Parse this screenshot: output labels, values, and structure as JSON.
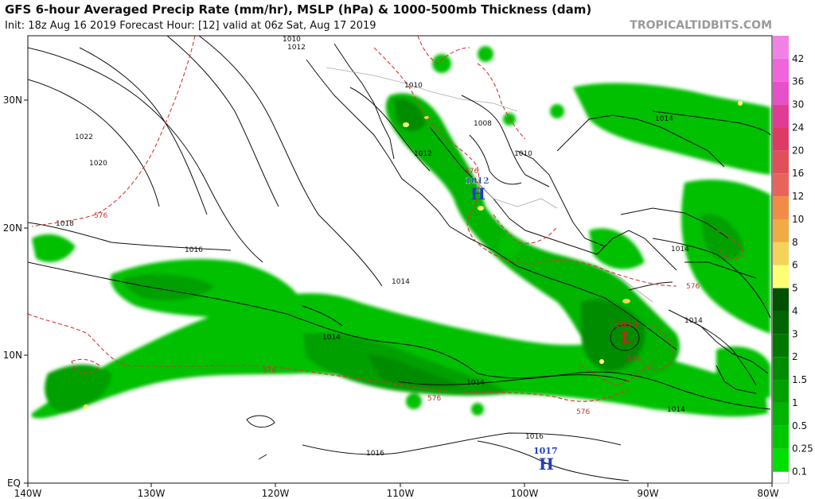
{
  "header": {
    "title": "GFS 6-hour Averaged Precip Rate (mm/hr), MSLP (hPa) & 1000-500mb Thickness (dam)",
    "subtitle": "Init: 18z Aug 16 2019   Forecast Hour: [12]   valid at 06z Sat, Aug 17 2019",
    "source": "TROPICALTIDBITS.COM"
  },
  "axes": {
    "lon_labels": [
      "140W",
      "130W",
      "120W",
      "110W",
      "100W",
      "90W",
      "80W"
    ],
    "lat_labels": [
      "30N",
      "20N",
      "10N",
      "EQ"
    ]
  },
  "colorbar": {
    "levels": [
      "0.1",
      "0.25",
      "0.5",
      "1",
      "1.5",
      "2",
      "3",
      "4",
      "5",
      "6",
      "8",
      "10",
      "12",
      "16",
      "20",
      "24",
      "30",
      "36",
      "42"
    ],
    "colors": [
      "#00e000",
      "#00c800",
      "#00b400",
      "#00a000",
      "#008c00",
      "#007800",
      "#006400",
      "#005000",
      "#ffff73",
      "#f5d25a",
      "#f0aa46",
      "#f08c46",
      "#e8645a",
      "#e0505a",
      "#dc3c64",
      "#e03c96",
      "#e650c8",
      "#f064dc",
      "#f082e6"
    ]
  },
  "pressure_centers": [
    {
      "type": "H",
      "value": "1012",
      "color": "#1f3fbf"
    },
    {
      "type": "L",
      "value": "1011",
      "color": "#cc2222"
    },
    {
      "type": "H",
      "value": "1017",
      "color": "#1f3fbf"
    }
  ],
  "isobar_labels": [
    "1010",
    "1012",
    "1022",
    "1020",
    "1018",
    "1016",
    "1014",
    "1010",
    "1008",
    "1012",
    "1010",
    "1014",
    "1014",
    "1014",
    "1014",
    "1014",
    "1016",
    "1016",
    "1014"
  ],
  "thickness_labels": [
    "576",
    "576",
    "576",
    "576",
    "576",
    "576",
    "576"
  ]
}
